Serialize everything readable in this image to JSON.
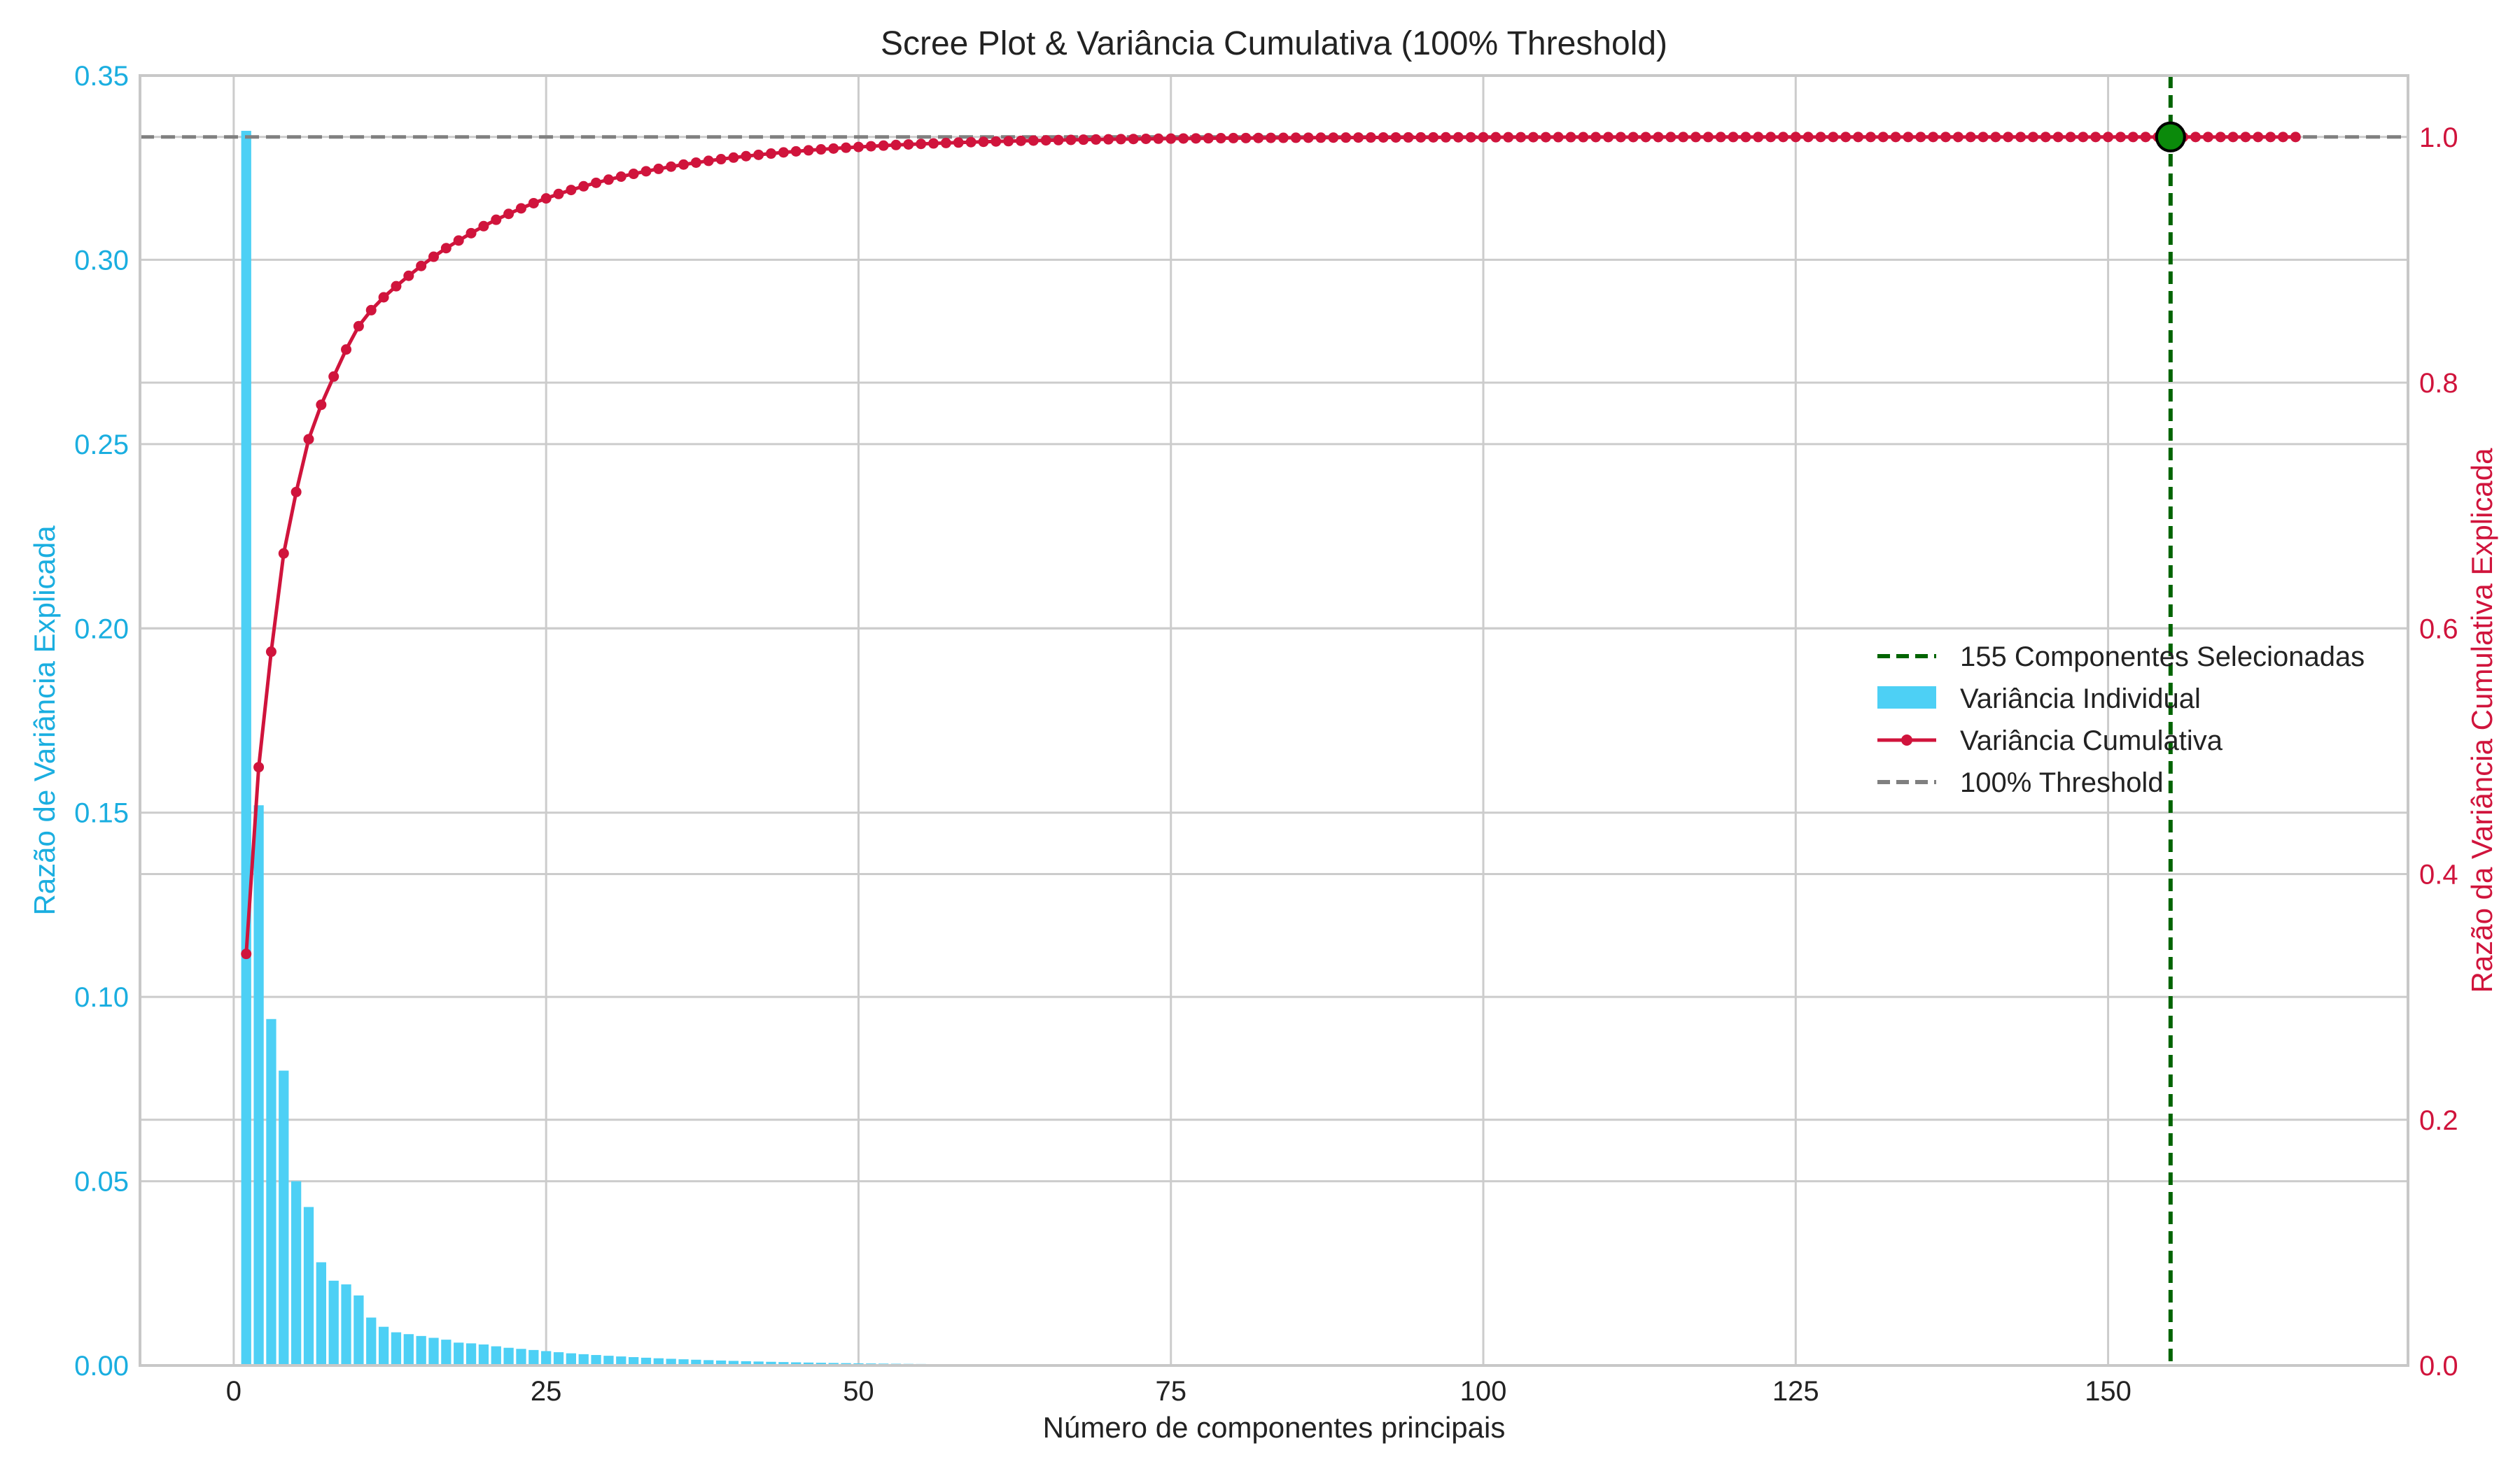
{
  "chart_data": {
    "type": "bar+line",
    "title": "Scree Plot & Variância Cumulativa (100% Threshold)",
    "xlabel": "Número de componentes principais",
    "ylabel_left": "Razão de Variância Explicada",
    "ylabel_right": "Razão da Variância Cumulativa Explicada",
    "xlim": [
      -7.5,
      174
    ],
    "ylim_left": [
      0,
      0.35
    ],
    "ylim_right": [
      0,
      1.05
    ],
    "x_ticks": [
      0,
      25,
      50,
      75,
      100,
      125,
      150
    ],
    "x_tick_labels": [
      "0",
      "25",
      "50",
      "75",
      "100",
      "125",
      "150"
    ],
    "y_left_ticks": [
      0,
      0.05,
      0.1,
      0.15,
      0.2,
      0.25,
      0.3,
      0.35
    ],
    "y_left_tick_labels": [
      "0.00",
      "0.05",
      "0.10",
      "0.15",
      "0.20",
      "0.25",
      "0.30",
      "0.35"
    ],
    "y_right_ticks": [
      0,
      0.2,
      0.4,
      0.6,
      0.8,
      1.0
    ],
    "y_right_tick_labels": [
      "0.0",
      "0.2",
      "0.4",
      "0.6",
      "0.8",
      "1.0"
    ],
    "grid": true,
    "legend_position": "center-right",
    "n_components": 165,
    "selected_component": 155,
    "threshold": 1.0,
    "individual_variance_head": [
      0.335,
      0.152,
      0.094,
      0.08,
      0.05,
      0.043,
      0.028,
      0.023,
      0.022,
      0.019,
      0.013,
      0.0105,
      0.009,
      0.0085,
      0.008,
      0.0075,
      0.007,
      0.0062,
      0.006,
      0.0057,
      0.0052,
      0.0048,
      0.0045,
      0.0042,
      0.0039,
      0.0036
    ],
    "individual_variance_tail_decay": {
      "start_value": 0.0033,
      "rate": 0.075
    },
    "cumulative_variance_head": [
      0.335,
      0.487,
      0.581,
      0.661,
      0.711,
      0.754,
      0.782,
      0.805,
      0.827,
      0.846,
      0.859,
      0.8695,
      0.8785,
      0.887,
      0.895,
      0.9025,
      0.9095,
      0.9157,
      0.9217,
      0.9274,
      0.9326,
      0.9374,
      0.9419,
      0.9461,
      0.95,
      0.9536
    ],
    "series": [
      {
        "name": "155 Componentes Selecionadas",
        "kind": "vline",
        "color": "#006400"
      },
      {
        "name": "Variância Individual",
        "kind": "bar",
        "color": "#4DD0F5"
      },
      {
        "name": "Variância Cumulativa",
        "kind": "line",
        "color": "#D0143C"
      },
      {
        "name": "100% Threshold",
        "kind": "hline",
        "color": "#808080"
      }
    ],
    "colors": {
      "left_axis": "#1AAEE0",
      "right_axis": "#D0143C",
      "grid": "#cccccc",
      "spine": "#c8c8c8",
      "marker_selected": "#0b8a0b"
    }
  }
}
